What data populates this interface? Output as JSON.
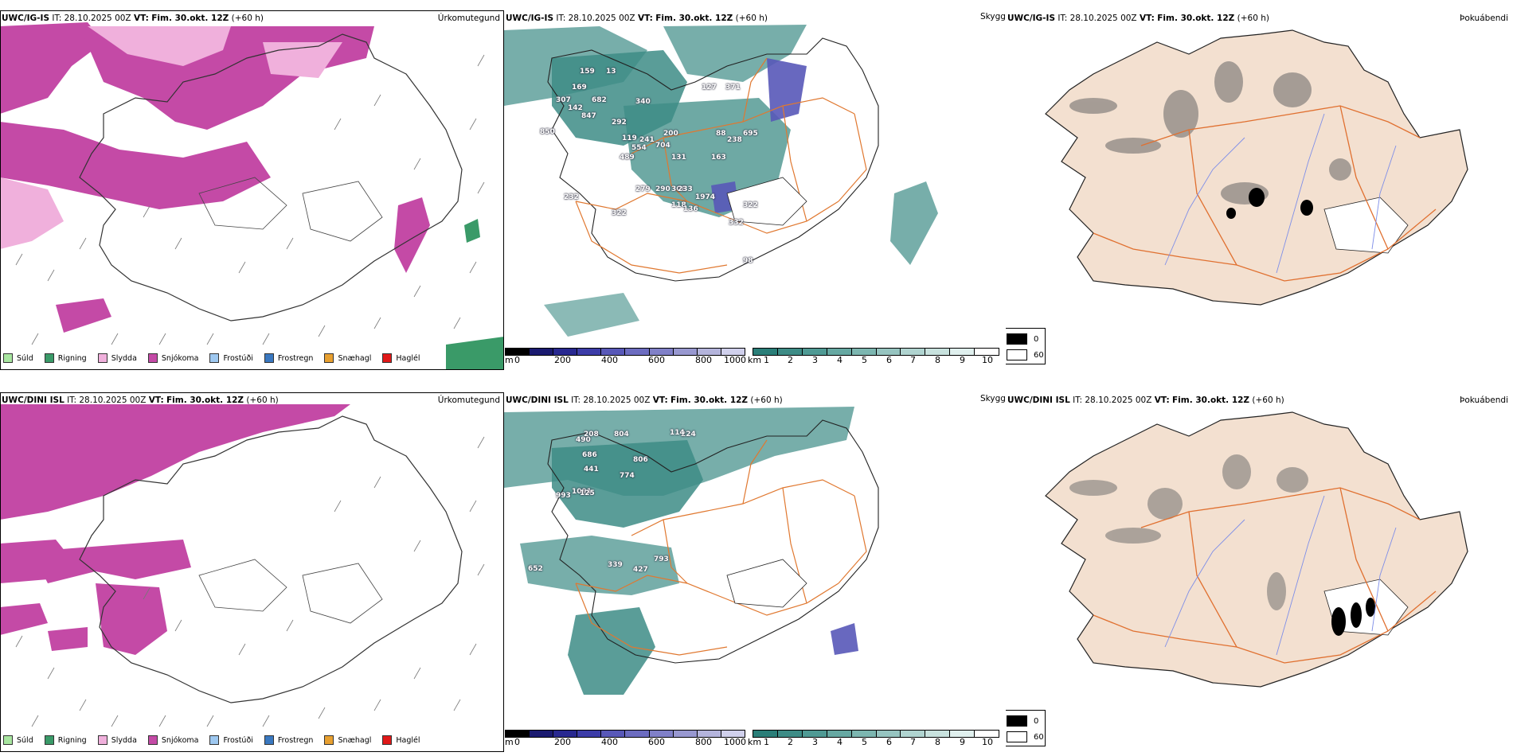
{
  "rows": [
    {
      "model": "UWC/IG-IS",
      "it_label": "IT:",
      "it_value": "28.10.2025 00Z",
      "vt_label": "VT:",
      "vt_value": "Fim. 30.okt. 12Z",
      "lead": "(+60 h)",
      "cloud_labels": [
        "159",
        "13",
        "169",
        "307",
        "682",
        "340",
        "142",
        "847",
        "292",
        "850",
        "119",
        "554",
        "489",
        "131",
        "704",
        "241",
        "200",
        "88",
        "695",
        "238",
        "163",
        "127",
        "371",
        "308",
        "279",
        "290",
        "233",
        "232",
        "1974",
        "322",
        "118",
        "136",
        "322",
        "332",
        "98"
      ]
    },
    {
      "model": "UWC/DINI ISL",
      "it_label": "IT:",
      "it_value": "28.10.2025 00Z",
      "vt_label": "VT:",
      "vt_value": "Fim. 30.okt. 12Z",
      "lead": "(+60 h)",
      "cloud_labels": [
        "490",
        "208",
        "804",
        "224",
        "686",
        "806",
        "114",
        "441",
        "774",
        "1091",
        "993",
        "125",
        "652",
        "339",
        "793",
        "427"
      ]
    }
  ],
  "panel_titles": {
    "precip": "Úrkomutegund",
    "visibility": "Skyggni",
    "fog": "Þokuábendi"
  },
  "precip_legend": [
    {
      "label": "Súld",
      "color": "#a8e6a0"
    },
    {
      "label": "Rigning",
      "color": "#3a9a68"
    },
    {
      "label": "Slydda",
      "color": "#f0b0dc"
    },
    {
      "label": "Snjókoma",
      "color": "#c44aa6"
    },
    {
      "label": "Frostúði",
      "color": "#9ec8f0"
    },
    {
      "label": "Frostregn",
      "color": "#3a78c0"
    },
    {
      "label": "Snæhagl",
      "color": "#e8a030"
    },
    {
      "label": "Haglél",
      "color": "#e01818"
    }
  ],
  "cloud_base_scale": {
    "unit": "m",
    "ticks": [
      "0",
      "200",
      "400",
      "600",
      "800",
      "1000"
    ],
    "colors": [
      "#000000",
      "#1a1a70",
      "#282890",
      "#3c3ca8",
      "#5858b8",
      "#6c6cc0",
      "#8080c8",
      "#9898d0",
      "#b4b4dc",
      "#d0d0ec"
    ]
  },
  "visibility_scale": {
    "unit": "km",
    "ticks": [
      "1",
      "2",
      "3",
      "4",
      "5",
      "6",
      "7",
      "8",
      "9",
      "10"
    ],
    "colors": [
      "#2a7e78",
      "#3d8c86",
      "#4f9a94",
      "#66a8a2",
      "#7cb6b0",
      "#96c4c0",
      "#b0d4d0",
      "#c8e2de",
      "#e0f0ee",
      "#ffffff"
    ]
  },
  "fog_scale": {
    "ticks": [
      "0",
      "60"
    ],
    "colors": [
      "#000000",
      "#ffffff"
    ]
  },
  "colors": {
    "snow": "#c44aa6",
    "sleet": "#f0b0dc",
    "rain": "#3a9a68",
    "vis_teal": "#3d8c86",
    "roads": "#e07830",
    "land_fog": "#f3e0d0",
    "rivers": "#7e8ee8"
  }
}
